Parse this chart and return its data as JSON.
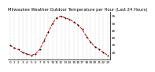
{
  "title": "Milwaukee Weather Outdoor Temperature per Hour (Last 24 Hours)",
  "hours": [
    0,
    1,
    2,
    3,
    4,
    5,
    6,
    7,
    8,
    9,
    10,
    11,
    12,
    13,
    14,
    15,
    16,
    17,
    18,
    19,
    20,
    21,
    22,
    23
  ],
  "temps": [
    35,
    33,
    32,
    30,
    29,
    28,
    29,
    32,
    38,
    44,
    50,
    54,
    55,
    54,
    53,
    51,
    49,
    46,
    41,
    37,
    34,
    32,
    30,
    28
  ],
  "line_color": "#cc0000",
  "marker_color": "#000000",
  "bg_color": "#ffffff",
  "ylim": [
    25,
    58
  ],
  "ytick_vals": [
    30,
    35,
    40,
    45,
    50,
    55
  ],
  "grid_color": "#aaaaaa",
  "title_fontsize": 3.8,
  "axis_fontsize": 3.0
}
